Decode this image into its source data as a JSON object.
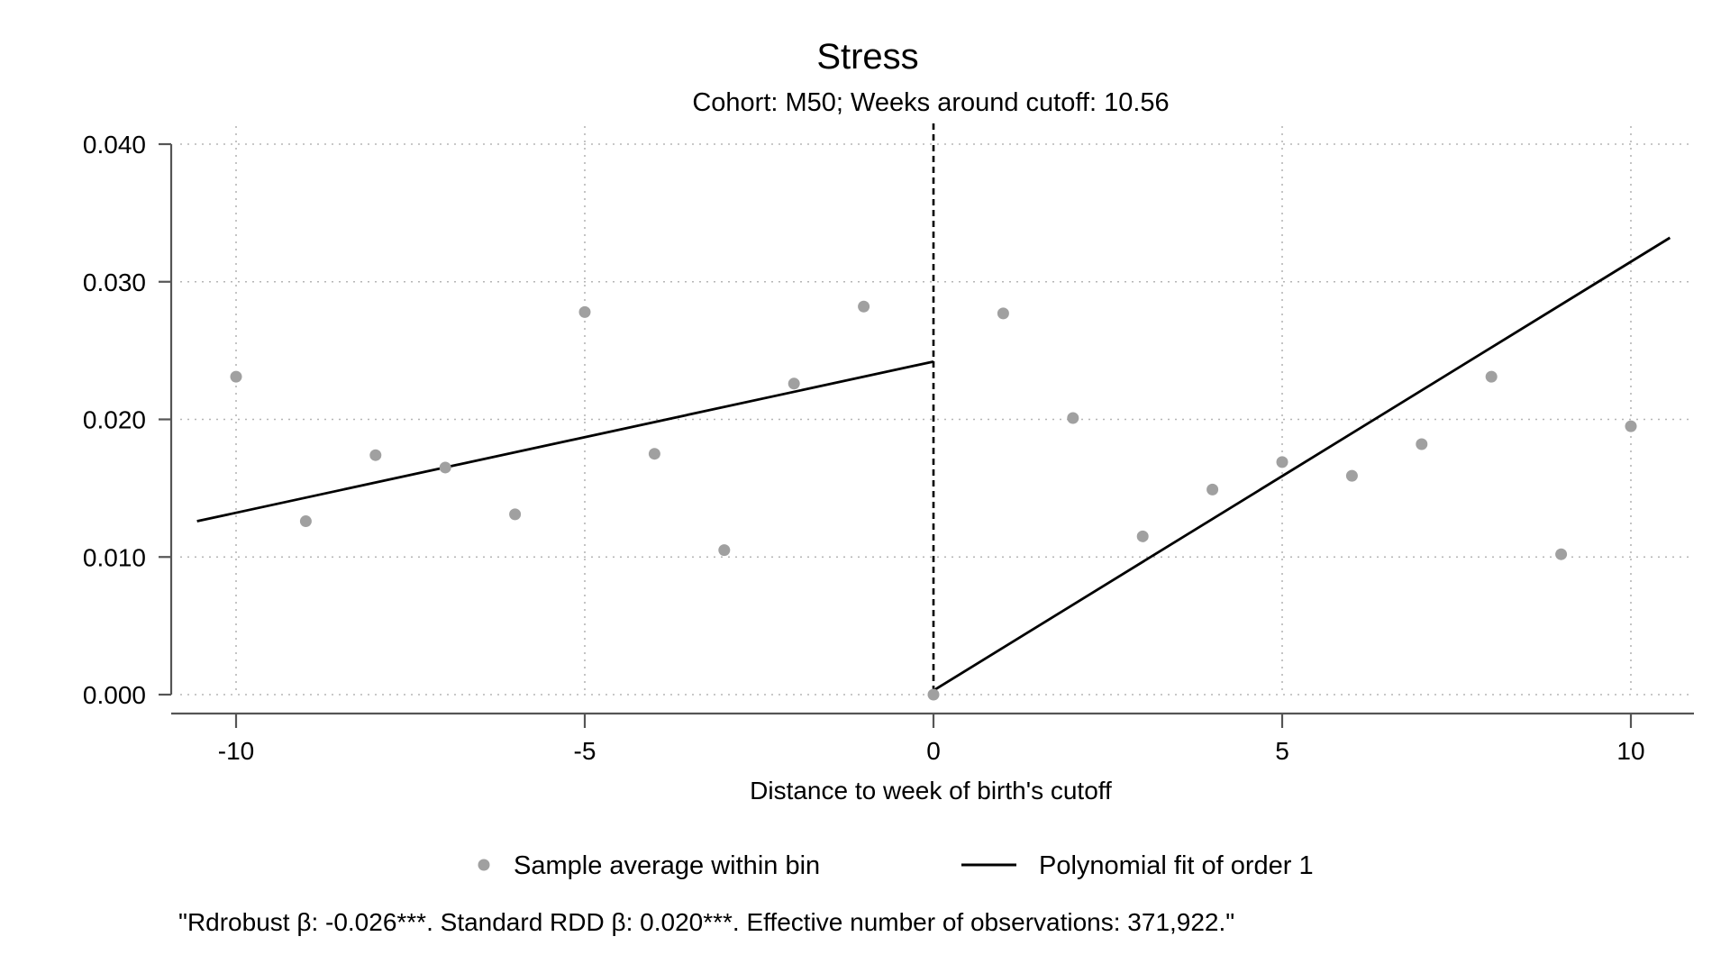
{
  "chart_data": {
    "type": "scatter",
    "title": "Stress",
    "subtitle": "Cohort: M50; Weeks around cutoff: 10.56",
    "xlabel": "Distance to week of birth's cutoff",
    "ylabel": "",
    "xlim": [
      -10.56,
      10.56
    ],
    "ylim": [
      0,
      0.04
    ],
    "x_ticks": [
      -10,
      -5,
      0,
      5,
      10
    ],
    "x_tick_labels": [
      "-10",
      "-5",
      "0",
      "5",
      "10"
    ],
    "y_ticks": [
      0,
      0.01,
      0.02,
      0.03,
      0.04
    ],
    "y_tick_labels": [
      "0.000",
      "0.010",
      "0.020",
      "0.030",
      "0.040"
    ],
    "grid": true,
    "cutoff_x": 0,
    "legend_position": "bottom",
    "series": [
      {
        "name": "Sample average within bin",
        "type": "scatter",
        "color": "#a0a0a0",
        "x": [
          -10,
          -9,
          -8,
          -7,
          -6,
          -5,
          -4,
          -3,
          -2,
          -1,
          0,
          1,
          2,
          3,
          4,
          5,
          6,
          7,
          8,
          9,
          10
        ],
        "y": [
          0.0231,
          0.0126,
          0.0174,
          0.0165,
          0.0131,
          0.0278,
          0.0175,
          0.0105,
          0.0226,
          0.0282,
          0.0,
          0.0277,
          0.0201,
          0.0115,
          0.0149,
          0.0169,
          0.0159,
          0.0182,
          0.0231,
          0.0102,
          0.0195
        ]
      },
      {
        "name": "Polynomial fit of order 1",
        "type": "line",
        "color": "#000000",
        "segments": [
          {
            "x": [
              -10.56,
              0
            ],
            "y": [
              0.0126,
              0.0242
            ]
          },
          {
            "x": [
              0,
              10.56
            ],
            "y": [
              0.0003,
              0.0332
            ]
          }
        ]
      }
    ],
    "note": "\"Rdrobust β: -0.026***. Standard RDD β: 0.020***. Effective number of observations: 371,922.\""
  }
}
